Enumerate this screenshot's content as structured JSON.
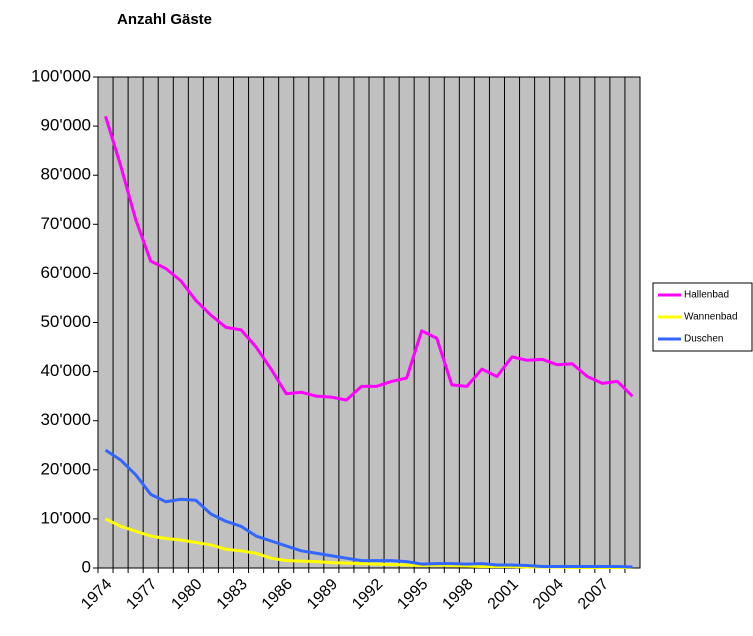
{
  "chart_data": {
    "type": "line",
    "title": "Anzahl Gäste",
    "categories": [
      "1974",
      null,
      null,
      "1977",
      null,
      null,
      "1980",
      null,
      null,
      "1983",
      null,
      null,
      "1986",
      null,
      null,
      "1989",
      null,
      null,
      "1992",
      null,
      null,
      "1995",
      null,
      null,
      "1998",
      null,
      null,
      "2001",
      null,
      null,
      "2004",
      null,
      null,
      "2007",
      null,
      null
    ],
    "series": [
      {
        "name": "Hallenbad",
        "color": "#ff00ff",
        "values": [
          92000,
          82000,
          71000,
          62500,
          61000,
          58500,
          54500,
          51500,
          49000,
          48500,
          45000,
          40500,
          35500,
          35800,
          35000,
          34800,
          34200,
          37000,
          37000,
          38000,
          38700,
          48300,
          46800,
          37300,
          37000,
          40500,
          39000,
          43000,
          42300,
          42500,
          41400,
          41600,
          39000,
          37600,
          38000,
          35000
        ]
      },
      {
        "name": "Wannenbad",
        "color": "#ffff00",
        "values": [
          10000,
          8500,
          7500,
          6500,
          6000,
          5700,
          5200,
          4700,
          3800,
          3500,
          3000,
          2000,
          1500,
          1400,
          1300,
          1100,
          1000,
          900,
          800,
          700,
          600,
          500,
          600,
          500,
          400,
          300,
          300,
          300,
          200,
          200,
          200,
          100,
          100,
          100,
          100,
          100
        ]
      },
      {
        "name": "Duschen",
        "color": "#3366ff",
        "values": [
          24000,
          22000,
          19000,
          15000,
          13500,
          14000,
          13800,
          11000,
          9500,
          8500,
          6500,
          5500,
          4500,
          3500,
          3000,
          2500,
          2000,
          1500,
          1500,
          1500,
          1300,
          800,
          900,
          900,
          800,
          900,
          600,
          600,
          500,
          300,
          300,
          300,
          300,
          300,
          300,
          200
        ]
      }
    ],
    "ylim": [
      0,
      100000
    ],
    "yticks": [
      0,
      {
        "value": 10000,
        "label": "10'000"
      },
      {
        "value": 20000,
        "label": "20'000"
      },
      {
        "value": 30000,
        "label": "30'000"
      },
      {
        "value": 40000,
        "label": "40'000"
      },
      {
        "value": 50000,
        "label": "50'000"
      },
      {
        "value": 60000,
        "label": "60'000"
      },
      {
        "value": 70000,
        "label": "70'000"
      },
      {
        "value": 80000,
        "label": "80'000"
      },
      {
        "value": 90000,
        "label": "90'000"
      },
      {
        "value": 100000,
        "label": "100'000"
      }
    ],
    "legend": "right",
    "plot_background": "#c0c0c0"
  }
}
